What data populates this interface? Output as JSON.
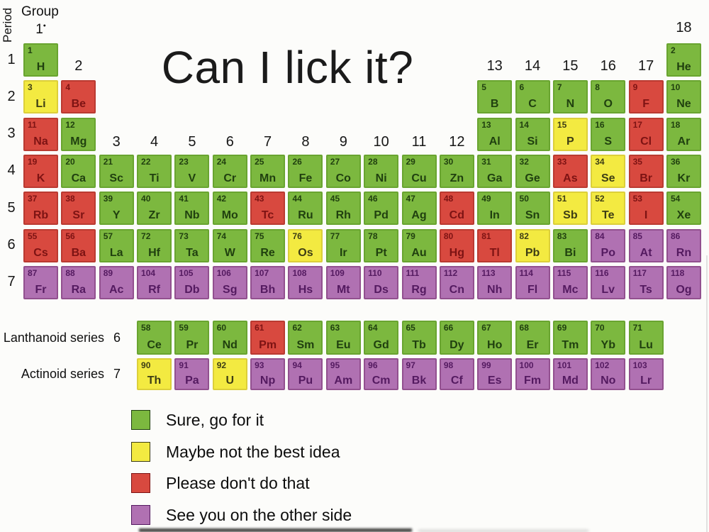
{
  "title": "Can I lick it?",
  "axes": {
    "period_axis_label": "Period",
    "group_axis_label": "Group",
    "group1_label": "1",
    "group1_mark": "•",
    "period_labels": [
      "1",
      "2",
      "3",
      "4",
      "5",
      "6",
      "7"
    ],
    "group_headers": [
      {
        "label": "2",
        "col": 2,
        "band": "p2"
      },
      {
        "label": "3",
        "col": 3,
        "band": "p4"
      },
      {
        "label": "4",
        "col": 4,
        "band": "p4"
      },
      {
        "label": "5",
        "col": 5,
        "band": "p4"
      },
      {
        "label": "6",
        "col": 6,
        "band": "p4"
      },
      {
        "label": "7",
        "col": 7,
        "band": "p4"
      },
      {
        "label": "8",
        "col": 8,
        "band": "p4"
      },
      {
        "label": "9",
        "col": 9,
        "band": "p4"
      },
      {
        "label": "10",
        "col": 10,
        "band": "p4"
      },
      {
        "label": "11",
        "col": 11,
        "band": "p4"
      },
      {
        "label": "12",
        "col": 12,
        "band": "p4"
      },
      {
        "label": "13",
        "col": 13,
        "band": "p2"
      },
      {
        "label": "14",
        "col": 14,
        "band": "p2"
      },
      {
        "label": "15",
        "col": 15,
        "band": "p2"
      },
      {
        "label": "16",
        "col": 16,
        "band": "p2"
      },
      {
        "label": "17",
        "col": 17,
        "band": "p2"
      },
      {
        "label": "18",
        "col": 18,
        "band": "p1"
      }
    ]
  },
  "series_labels": {
    "lanthanoid": {
      "name": "Lanthanoid series",
      "period": "6"
    },
    "actinoid": {
      "name": "Actinoid series",
      "period": "7"
    }
  },
  "colors": {
    "green": "#7cb83f",
    "yellow": "#f3ea41",
    "red": "#d8493f",
    "purple": "#b071b2"
  },
  "legend": [
    {
      "category": "green",
      "label": "Sure, go for it"
    },
    {
      "category": "yellow",
      "label": "Maybe not the best idea"
    },
    {
      "category": "red",
      "label": "Please don't do that"
    },
    {
      "category": "purple",
      "label": "See you on the other side"
    }
  ],
  "elements": [
    {
      "n": 1,
      "sym": "H",
      "period": 1,
      "group": 1,
      "cat": "green"
    },
    {
      "n": 2,
      "sym": "He",
      "period": 1,
      "group": 18,
      "cat": "green"
    },
    {
      "n": 3,
      "sym": "Li",
      "period": 2,
      "group": 1,
      "cat": "yellow"
    },
    {
      "n": 4,
      "sym": "Be",
      "period": 2,
      "group": 2,
      "cat": "red"
    },
    {
      "n": 5,
      "sym": "B",
      "period": 2,
      "group": 13,
      "cat": "green"
    },
    {
      "n": 6,
      "sym": "C",
      "period": 2,
      "group": 14,
      "cat": "green"
    },
    {
      "n": 7,
      "sym": "N",
      "period": 2,
      "group": 15,
      "cat": "green"
    },
    {
      "n": 8,
      "sym": "O",
      "period": 2,
      "group": 16,
      "cat": "green"
    },
    {
      "n": 9,
      "sym": "F",
      "period": 2,
      "group": 17,
      "cat": "red"
    },
    {
      "n": 10,
      "sym": "Ne",
      "period": 2,
      "group": 18,
      "cat": "green"
    },
    {
      "n": 11,
      "sym": "Na",
      "period": 3,
      "group": 1,
      "cat": "red"
    },
    {
      "n": 12,
      "sym": "Mg",
      "period": 3,
      "group": 2,
      "cat": "green"
    },
    {
      "n": 13,
      "sym": "Al",
      "period": 3,
      "group": 13,
      "cat": "green"
    },
    {
      "n": 14,
      "sym": "Si",
      "period": 3,
      "group": 14,
      "cat": "green"
    },
    {
      "n": 15,
      "sym": "P",
      "period": 3,
      "group": 15,
      "cat": "yellow"
    },
    {
      "n": 16,
      "sym": "S",
      "period": 3,
      "group": 16,
      "cat": "green"
    },
    {
      "n": 17,
      "sym": "Cl",
      "period": 3,
      "group": 17,
      "cat": "red"
    },
    {
      "n": 18,
      "sym": "Ar",
      "period": 3,
      "group": 18,
      "cat": "green"
    },
    {
      "n": 19,
      "sym": "K",
      "period": 4,
      "group": 1,
      "cat": "red"
    },
    {
      "n": 20,
      "sym": "Ca",
      "period": 4,
      "group": 2,
      "cat": "green"
    },
    {
      "n": 21,
      "sym": "Sc",
      "period": 4,
      "group": 3,
      "cat": "green"
    },
    {
      "n": 22,
      "sym": "Ti",
      "period": 4,
      "group": 4,
      "cat": "green"
    },
    {
      "n": 23,
      "sym": "V",
      "period": 4,
      "group": 5,
      "cat": "green"
    },
    {
      "n": 24,
      "sym": "Cr",
      "period": 4,
      "group": 6,
      "cat": "green"
    },
    {
      "n": 25,
      "sym": "Mn",
      "period": 4,
      "group": 7,
      "cat": "green"
    },
    {
      "n": 26,
      "sym": "Fe",
      "period": 4,
      "group": 8,
      "cat": "green"
    },
    {
      "n": 27,
      "sym": "Co",
      "period": 4,
      "group": 9,
      "cat": "green"
    },
    {
      "n": 28,
      "sym": "Ni",
      "period": 4,
      "group": 10,
      "cat": "green"
    },
    {
      "n": 29,
      "sym": "Cu",
      "period": 4,
      "group": 11,
      "cat": "green"
    },
    {
      "n": 30,
      "sym": "Zn",
      "period": 4,
      "group": 12,
      "cat": "green"
    },
    {
      "n": 31,
      "sym": "Ga",
      "period": 4,
      "group": 13,
      "cat": "green"
    },
    {
      "n": 32,
      "sym": "Ge",
      "period": 4,
      "group": 14,
      "cat": "green"
    },
    {
      "n": 33,
      "sym": "As",
      "period": 4,
      "group": 15,
      "cat": "red"
    },
    {
      "n": 34,
      "sym": "Se",
      "period": 4,
      "group": 16,
      "cat": "yellow"
    },
    {
      "n": 35,
      "sym": "Br",
      "period": 4,
      "group": 17,
      "cat": "red"
    },
    {
      "n": 36,
      "sym": "Kr",
      "period": 4,
      "group": 18,
      "cat": "green"
    },
    {
      "n": 37,
      "sym": "Rb",
      "period": 5,
      "group": 1,
      "cat": "red"
    },
    {
      "n": 38,
      "sym": "Sr",
      "period": 5,
      "group": 2,
      "cat": "red"
    },
    {
      "n": 39,
      "sym": "Y",
      "period": 5,
      "group": 3,
      "cat": "green"
    },
    {
      "n": 40,
      "sym": "Zr",
      "period": 5,
      "group": 4,
      "cat": "green"
    },
    {
      "n": 41,
      "sym": "Nb",
      "period": 5,
      "group": 5,
      "cat": "green"
    },
    {
      "n": 42,
      "sym": "Mo",
      "period": 5,
      "group": 6,
      "cat": "green"
    },
    {
      "n": 43,
      "sym": "Tc",
      "period": 5,
      "group": 7,
      "cat": "red"
    },
    {
      "n": 44,
      "sym": "Ru",
      "period": 5,
      "group": 8,
      "cat": "green"
    },
    {
      "n": 45,
      "sym": "Rh",
      "period": 5,
      "group": 9,
      "cat": "green"
    },
    {
      "n": 46,
      "sym": "Pd",
      "period": 5,
      "group": 10,
      "cat": "green"
    },
    {
      "n": 47,
      "sym": "Ag",
      "period": 5,
      "group": 11,
      "cat": "green"
    },
    {
      "n": 48,
      "sym": "Cd",
      "period": 5,
      "group": 12,
      "cat": "red"
    },
    {
      "n": 49,
      "sym": "In",
      "period": 5,
      "group": 13,
      "cat": "green"
    },
    {
      "n": 50,
      "sym": "Sn",
      "period": 5,
      "group": 14,
      "cat": "green"
    },
    {
      "n": 51,
      "sym": "Sb",
      "period": 5,
      "group": 15,
      "cat": "yellow"
    },
    {
      "n": 52,
      "sym": "Te",
      "period": 5,
      "group": 16,
      "cat": "yellow"
    },
    {
      "n": 53,
      "sym": "I",
      "period": 5,
      "group": 17,
      "cat": "red"
    },
    {
      "n": 54,
      "sym": "Xe",
      "period": 5,
      "group": 18,
      "cat": "green"
    },
    {
      "n": 55,
      "sym": "Cs",
      "period": 6,
      "group": 1,
      "cat": "red"
    },
    {
      "n": 56,
      "sym": "Ba",
      "period": 6,
      "group": 2,
      "cat": "red"
    },
    {
      "n": 57,
      "sym": "La",
      "period": 6,
      "group": 3,
      "cat": "green"
    },
    {
      "n": 72,
      "sym": "Hf",
      "period": 6,
      "group": 4,
      "cat": "green"
    },
    {
      "n": 73,
      "sym": "Ta",
      "period": 6,
      "group": 5,
      "cat": "green"
    },
    {
      "n": 74,
      "sym": "W",
      "period": 6,
      "group": 6,
      "cat": "green"
    },
    {
      "n": 75,
      "sym": "Re",
      "period": 6,
      "group": 7,
      "cat": "green"
    },
    {
      "n": 76,
      "sym": "Os",
      "period": 6,
      "group": 8,
      "cat": "yellow"
    },
    {
      "n": 77,
      "sym": "Ir",
      "period": 6,
      "group": 9,
      "cat": "green"
    },
    {
      "n": 78,
      "sym": "Pt",
      "period": 6,
      "group": 10,
      "cat": "green"
    },
    {
      "n": 79,
      "sym": "Au",
      "period": 6,
      "group": 11,
      "cat": "green"
    },
    {
      "n": 80,
      "sym": "Hg",
      "period": 6,
      "group": 12,
      "cat": "red"
    },
    {
      "n": 81,
      "sym": "Tl",
      "period": 6,
      "group": 13,
      "cat": "red"
    },
    {
      "n": 82,
      "sym": "Pb",
      "period": 6,
      "group": 14,
      "cat": "yellow"
    },
    {
      "n": 83,
      "sym": "Bi",
      "period": 6,
      "group": 15,
      "cat": "green"
    },
    {
      "n": 84,
      "sym": "Po",
      "period": 6,
      "group": 16,
      "cat": "purple"
    },
    {
      "n": 85,
      "sym": "At",
      "period": 6,
      "group": 17,
      "cat": "purple"
    },
    {
      "n": 86,
      "sym": "Rn",
      "period": 6,
      "group": 18,
      "cat": "purple"
    },
    {
      "n": 87,
      "sym": "Fr",
      "period": 7,
      "group": 1,
      "cat": "purple"
    },
    {
      "n": 88,
      "sym": "Ra",
      "period": 7,
      "group": 2,
      "cat": "purple"
    },
    {
      "n": 89,
      "sym": "Ac",
      "period": 7,
      "group": 3,
      "cat": "purple"
    },
    {
      "n": 104,
      "sym": "Rf",
      "period": 7,
      "group": 4,
      "cat": "purple"
    },
    {
      "n": 105,
      "sym": "Db",
      "period": 7,
      "group": 5,
      "cat": "purple"
    },
    {
      "n": 106,
      "sym": "Sg",
      "period": 7,
      "group": 6,
      "cat": "purple"
    },
    {
      "n": 107,
      "sym": "Bh",
      "period": 7,
      "group": 7,
      "cat": "purple"
    },
    {
      "n": 108,
      "sym": "Hs",
      "period": 7,
      "group": 8,
      "cat": "purple"
    },
    {
      "n": 109,
      "sym": "Mt",
      "period": 7,
      "group": 9,
      "cat": "purple"
    },
    {
      "n": 110,
      "sym": "Ds",
      "period": 7,
      "group": 10,
      "cat": "purple"
    },
    {
      "n": 111,
      "sym": "Rg",
      "period": 7,
      "group": 11,
      "cat": "purple"
    },
    {
      "n": 112,
      "sym": "Cn",
      "period": 7,
      "group": 12,
      "cat": "purple"
    },
    {
      "n": 113,
      "sym": "Nh",
      "period": 7,
      "group": 13,
      "cat": "purple"
    },
    {
      "n": 114,
      "sym": "Fl",
      "period": 7,
      "group": 14,
      "cat": "purple"
    },
    {
      "n": 115,
      "sym": "Mc",
      "period": 7,
      "group": 15,
      "cat": "purple"
    },
    {
      "n": 116,
      "sym": "Lv",
      "period": 7,
      "group": 16,
      "cat": "purple"
    },
    {
      "n": 117,
      "sym": "Ts",
      "period": 7,
      "group": 17,
      "cat": "purple"
    },
    {
      "n": 118,
      "sym": "Og",
      "period": 7,
      "group": 18,
      "cat": "purple"
    }
  ],
  "lanthanoids": [
    {
      "n": 58,
      "sym": "Ce",
      "cat": "green"
    },
    {
      "n": 59,
      "sym": "Pr",
      "cat": "green"
    },
    {
      "n": 60,
      "sym": "Nd",
      "cat": "green"
    },
    {
      "n": 61,
      "sym": "Pm",
      "cat": "red"
    },
    {
      "n": 62,
      "sym": "Sm",
      "cat": "green"
    },
    {
      "n": 63,
      "sym": "Eu",
      "cat": "green"
    },
    {
      "n": 64,
      "sym": "Gd",
      "cat": "green"
    },
    {
      "n": 65,
      "sym": "Tb",
      "cat": "green"
    },
    {
      "n": 66,
      "sym": "Dy",
      "cat": "green"
    },
    {
      "n": 67,
      "sym": "Ho",
      "cat": "green"
    },
    {
      "n": 68,
      "sym": "Er",
      "cat": "green"
    },
    {
      "n": 69,
      "sym": "Tm",
      "cat": "green"
    },
    {
      "n": 70,
      "sym": "Yb",
      "cat": "green"
    },
    {
      "n": 71,
      "sym": "Lu",
      "cat": "green"
    }
  ],
  "actinoids": [
    {
      "n": 90,
      "sym": "Th",
      "cat": "yellow"
    },
    {
      "n": 91,
      "sym": "Pa",
      "cat": "purple"
    },
    {
      "n": 92,
      "sym": "U",
      "cat": "yellow"
    },
    {
      "n": 93,
      "sym": "Np",
      "cat": "purple"
    },
    {
      "n": 94,
      "sym": "Pu",
      "cat": "purple"
    },
    {
      "n": 95,
      "sym": "Am",
      "cat": "purple"
    },
    {
      "n": 96,
      "sym": "Cm",
      "cat": "purple"
    },
    {
      "n": 97,
      "sym": "Bk",
      "cat": "purple"
    },
    {
      "n": 98,
      "sym": "Cf",
      "cat": "purple"
    },
    {
      "n": 99,
      "sym": "Es",
      "cat": "purple"
    },
    {
      "n": 100,
      "sym": "Fm",
      "cat": "purple"
    },
    {
      "n": 101,
      "sym": "Md",
      "cat": "purple"
    },
    {
      "n": 102,
      "sym": "No",
      "cat": "purple"
    },
    {
      "n": 103,
      "sym": "Lr",
      "cat": "purple"
    }
  ]
}
